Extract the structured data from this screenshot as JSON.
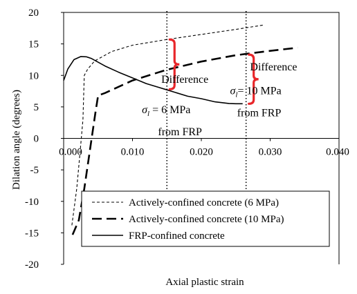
{
  "chart_data": {
    "type": "line",
    "title": "",
    "xlabel": "Axial plastic strain",
    "ylabel": "Dilation angle (degrees)",
    "xlim": [
      0.0,
      0.04
    ],
    "ylim": [
      -20,
      20
    ],
    "x_ticks": [
      "0.000",
      "0.010",
      "0.020",
      "0.030",
      "0.040"
    ],
    "y_ticks": [
      "20",
      "15",
      "10",
      "5",
      "0",
      "-5",
      "-10",
      "-15",
      "-20"
    ],
    "grid": false,
    "legend_position": "bottom",
    "series": [
      {
        "name": "Actively-confined concrete (6 MPa)",
        "style": "short-dash-thin",
        "x": [
          0.0012,
          0.0019,
          0.0024,
          0.0028,
          0.003,
          0.0035,
          0.0045,
          0.007,
          0.01,
          0.015,
          0.02,
          0.025,
          0.029
        ],
        "y": [
          -13.8,
          -8,
          -2,
          3,
          10,
          11,
          12.3,
          13.8,
          14.8,
          15.7,
          16.5,
          17.3,
          18.0
        ]
      },
      {
        "name": "Actively-confined concrete (10 MPa)",
        "style": "long-dash-thick",
        "x": [
          0.0013,
          0.0022,
          0.003,
          0.0038,
          0.0046,
          0.005,
          0.006,
          0.01,
          0.015,
          0.02,
          0.025,
          0.03,
          0.034
        ],
        "y": [
          -15.3,
          -13,
          -8,
          -2,
          4,
          6.8,
          7.2,
          9.2,
          10.9,
          12.2,
          13.2,
          13.9,
          14.4
        ]
      },
      {
        "name": "FRP-confined concrete",
        "style": "solid",
        "x": [
          0.0,
          0.0006,
          0.0015,
          0.0025,
          0.0033,
          0.004,
          0.006,
          0.008,
          0.01,
          0.012,
          0.015,
          0.018,
          0.02,
          0.022,
          0.024,
          0.025,
          0.026
        ],
        "y": [
          9.2,
          11.0,
          12.5,
          13.0,
          12.95,
          12.7,
          11.5,
          10.5,
          9.6,
          8.7,
          7.7,
          6.7,
          6.3,
          5.8,
          5.55,
          5.5,
          5.5
        ]
      }
    ],
    "vertical_lines": [
      {
        "x": 0.015,
        "style": "dotted"
      },
      {
        "x": 0.0265,
        "style": "dotted"
      }
    ],
    "braces": [
      {
        "x": 0.015,
        "y_low": 7.8,
        "y_high": 15.7,
        "color": "#e8262a"
      },
      {
        "x": 0.0265,
        "y_low": 5.5,
        "y_high": 13.3,
        "color": "#e8262a"
      }
    ],
    "annotations": [
      {
        "text": "Difference",
        "x": 0.0176,
        "y": 8.8
      },
      {
        "text": "Difference",
        "x": 0.0305,
        "y": 10.8
      },
      {
        "sigma": "σ",
        "sub": "l",
        "rest": " = 6 MPa",
        "x": 0.0149,
        "y": 4.0
      },
      {
        "text": "from FRP",
        "x": 0.0169,
        "y": 0.5
      },
      {
        "sigma": "σ",
        "sub": "l",
        "rest": "= 10 MPa",
        "x": 0.0279,
        "y": 7.0
      },
      {
        "text": "from FRP",
        "x": 0.0284,
        "y": 3.5
      }
    ]
  }
}
